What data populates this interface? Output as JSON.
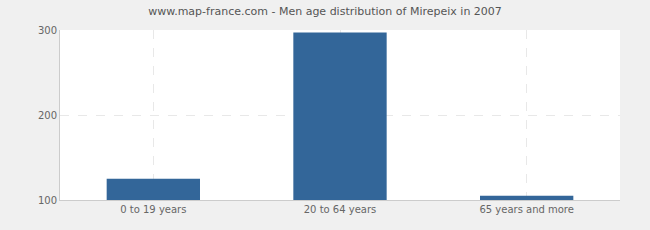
{
  "chart_data": {
    "type": "bar",
    "title": "www.map-france.com - Men age distribution of Mirepeix in 2007",
    "categories": [
      "0 to 19 years",
      "20 to 64 years",
      "65 years and more"
    ],
    "values": [
      125,
      297,
      105
    ],
    "color": "#336699",
    "ylim": [
      100,
      300
    ],
    "yticks": [
      100,
      200,
      300
    ],
    "grid": true
  }
}
